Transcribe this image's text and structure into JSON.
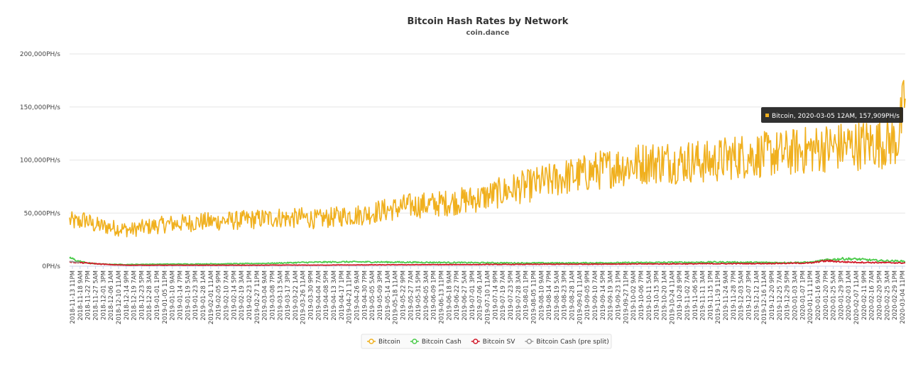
{
  "chart_data": {
    "type": "line",
    "title": "Bitcoin Hash Rates by Network",
    "subtitle": "coin.dance",
    "xlabel": "",
    "ylabel": "",
    "ylim": [
      0,
      200000
    ],
    "y_ticks": [
      "0PH/s",
      "50,000PH/s",
      "100,000PH/s",
      "150,000PH/s",
      "200,000PH/s"
    ],
    "x_ticks": [
      "2018-11-13 11PM",
      "2018-11-18 9AM",
      "2018-11-22 7PM",
      "2018-11-27 5AM",
      "2018-12-01 3PM",
      "2018-12-06 1AM",
      "2018-12-10 11AM",
      "2018-12-14 9PM",
      "2018-12-19 7AM",
      "2018-12-23 5PM",
      "2018-12-28 3AM",
      "2019-01-01 1PM",
      "2019-01-05 11PM",
      "2019-01-10 9AM",
      "2019-01-14 7PM",
      "2019-01-19 5AM",
      "2019-01-23 3PM",
      "2019-01-28 1AM",
      "2019-02-01 11AM",
      "2019-02-05 9PM",
      "2019-02-10 7AM",
      "2019-02-14 5PM",
      "2019-02-19 3AM",
      "2019-02-23 1PM",
      "2019-02-27 11PM",
      "2019-03-04 9AM",
      "2019-03-08 7PM",
      "2019-03-13 5AM",
      "2019-03-17 3PM",
      "2019-03-22 1AM",
      "2019-03-26 11AM",
      "2019-03-30 9PM",
      "2019-04-04 7AM",
      "2019-04-08 5PM",
      "2019-04-13 3AM",
      "2019-04-17 1PM",
      "2019-04-21 11PM",
      "2019-04-26 9AM",
      "2019-04-30 7PM",
      "2019-05-05 5AM",
      "2019-05-09 3PM",
      "2019-05-14 1AM",
      "2019-05-18 11AM",
      "2019-05-22 9PM",
      "2019-05-27 7AM",
      "2019-05-31 5PM",
      "2019-06-05 3AM",
      "2019-06-09 1PM",
      "2019-06-13 11PM",
      "2019-06-18 9AM",
      "2019-06-22 7PM",
      "2019-06-27 5AM",
      "2019-07-01 3PM",
      "2019-07-06 1AM",
      "2019-07-10 11AM",
      "2019-07-14 9PM",
      "2019-07-19 7AM",
      "2019-07-23 5PM",
      "2019-07-28 3AM",
      "2019-08-01 1PM",
      "2019-08-05 11PM",
      "2019-08-10 9AM",
      "2019-08-14 7PM",
      "2019-08-19 5AM",
      "2019-08-23 3PM",
      "2019-08-28 1AM",
      "2019-09-01 11AM",
      "2019-09-05 9PM",
      "2019-09-10 7AM",
      "2019-09-14 5PM",
      "2019-09-19 3AM",
      "2019-09-23 1PM",
      "2019-09-27 11PM",
      "2019-10-02 9AM",
      "2019-10-06 7PM",
      "2019-10-11 5AM",
      "2019-10-15 3PM",
      "2019-10-20 1AM",
      "2019-10-24 11AM",
      "2019-10-28 9PM",
      "2019-11-02 7AM",
      "2019-11-06 5PM",
      "2019-11-11 3AM",
      "2019-11-15 1PM",
      "2019-11-19 11PM",
      "2019-11-24 9AM",
      "2019-11-28 7PM",
      "2019-12-03 5AM",
      "2019-12-07 3PM",
      "2019-12-12 1AM",
      "2019-12-16 11AM",
      "2019-12-20 9PM",
      "2019-12-25 7AM",
      "2019-12-29 5PM",
      "2020-01-03 3AM",
      "2020-01-07 1PM",
      "2020-01-11 11PM",
      "2020-01-16 9AM",
      "2020-01-20 7PM",
      "2020-01-25 5AM",
      "2020-01-29 3PM",
      "2020-02-03 1AM",
      "2020-02-07 11AM",
      "2020-02-11 9PM",
      "2020-02-16 7AM",
      "2020-02-20 5PM",
      "2020-02-25 3AM",
      "2020-02-29 1PM",
      "2020-03-04 11PM"
    ],
    "series": [
      {
        "name": "Bitcoin",
        "color": "#f0b01e",
        "values": [
          43000,
          41000,
          44000,
          39000,
          38000,
          37000,
          36000,
          35000,
          34000,
          36000,
          37000,
          38000,
          39000,
          40000,
          40000,
          41000,
          41000,
          42000,
          42000,
          42000,
          43000,
          43000,
          43000,
          44000,
          44000,
          45000,
          45000,
          46000,
          45000,
          45000,
          46000,
          45000,
          44000,
          45000,
          46000,
          47000,
          48000,
          48000,
          49000,
          50000,
          52000,
          53000,
          54000,
          56000,
          57000,
          57000,
          58000,
          58000,
          59000,
          60000,
          61000,
          62000,
          63000,
          64000,
          66000,
          68000,
          70000,
          72000,
          74000,
          75000,
          77000,
          79000,
          80000,
          82000,
          84000,
          85000,
          86000,
          88000,
          90000,
          91000,
          93000,
          94000,
          95000,
          96000,
          97000,
          98000,
          98000,
          99000,
          98000,
          98000,
          99000,
          99000,
          98000,
          98000,
          100000,
          102000,
          103000,
          104000,
          104000,
          105000,
          105000,
          106000,
          106000,
          107000,
          108000,
          109000,
          110000,
          111000,
          112000,
          112000,
          113000,
          114000,
          114000,
          115000,
          116000,
          116000,
          117000,
          118000,
          157909
        ]
      },
      {
        "name": "Bitcoin Cash",
        "color": "#4bcb4b",
        "values": [
          8000,
          5000,
          3500,
          2500,
          2000,
          1800,
          1700,
          1600,
          1600,
          1700,
          1800,
          1800,
          1900,
          1900,
          2000,
          2000,
          2000,
          2100,
          2100,
          2200,
          2200,
          2300,
          2300,
          2400,
          2500,
          2600,
          2700,
          2900,
          3100,
          3300,
          3500,
          3600,
          3700,
          3800,
          3900,
          4000,
          4000,
          4000,
          4000,
          3900,
          3900,
          3800,
          3800,
          3700,
          3700,
          3600,
          3600,
          3500,
          3500,
          3400,
          3400,
          3300,
          3300,
          3200,
          3200,
          3100,
          3100,
          3000,
          3000,
          3000,
          3000,
          3000,
          3000,
          3000,
          3000,
          3000,
          3000,
          3100,
          3100,
          3200,
          3200,
          3200,
          3300,
          3300,
          3400,
          3400,
          3500,
          3500,
          3600,
          3600,
          3600,
          3700,
          3700,
          3800,
          3800,
          3800,
          3700,
          3600,
          3600,
          3500,
          3500,
          3400,
          3400,
          3400,
          3500,
          3600,
          3800,
          5000,
          6000,
          6500,
          7000,
          6800,
          6500,
          6000,
          5500,
          5200,
          5000,
          4800,
          4600
        ]
      },
      {
        "name": "Bitcoin SV",
        "color": "#d11a2a",
        "values": [
          4000,
          3500,
          3000,
          2500,
          2000,
          1500,
          1200,
          1000,
          900,
          900,
          900,
          900,
          900,
          900,
          900,
          900,
          900,
          900,
          900,
          900,
          900,
          900,
          900,
          900,
          900,
          900,
          1000,
          1000,
          1000,
          1000,
          1000,
          1000,
          1000,
          1000,
          1100,
          1100,
          1100,
          1100,
          1200,
          1200,
          1200,
          1200,
          1300,
          1300,
          1300,
          1300,
          1400,
          1400,
          1400,
          1400,
          1500,
          1500,
          1500,
          1500,
          1600,
          1600,
          1600,
          1600,
          1700,
          1700,
          1700,
          1800,
          1800,
          1800,
          1800,
          1800,
          1900,
          1900,
          1900,
          2000,
          2000,
          2000,
          2000,
          2000,
          2100,
          2100,
          2100,
          2100,
          2200,
          2200,
          2200,
          2200,
          2300,
          2300,
          2300,
          2300,
          2400,
          2400,
          2400,
          2500,
          2500,
          2600,
          2600,
          2700,
          2800,
          2900,
          3000,
          4500,
          5000,
          4500,
          4000,
          3800,
          3600,
          3500,
          3400,
          3300,
          3200,
          3100,
          3000
        ]
      },
      {
        "name": "Bitcoin Cash (pre split)",
        "color": "#9a9a9a",
        "values": [
          4500,
          3500
        ]
      }
    ],
    "tooltip": "Bitcoin, 2020-03-05 12AM, 157,909PH/s",
    "legend_position": "bottom",
    "grid": true
  }
}
